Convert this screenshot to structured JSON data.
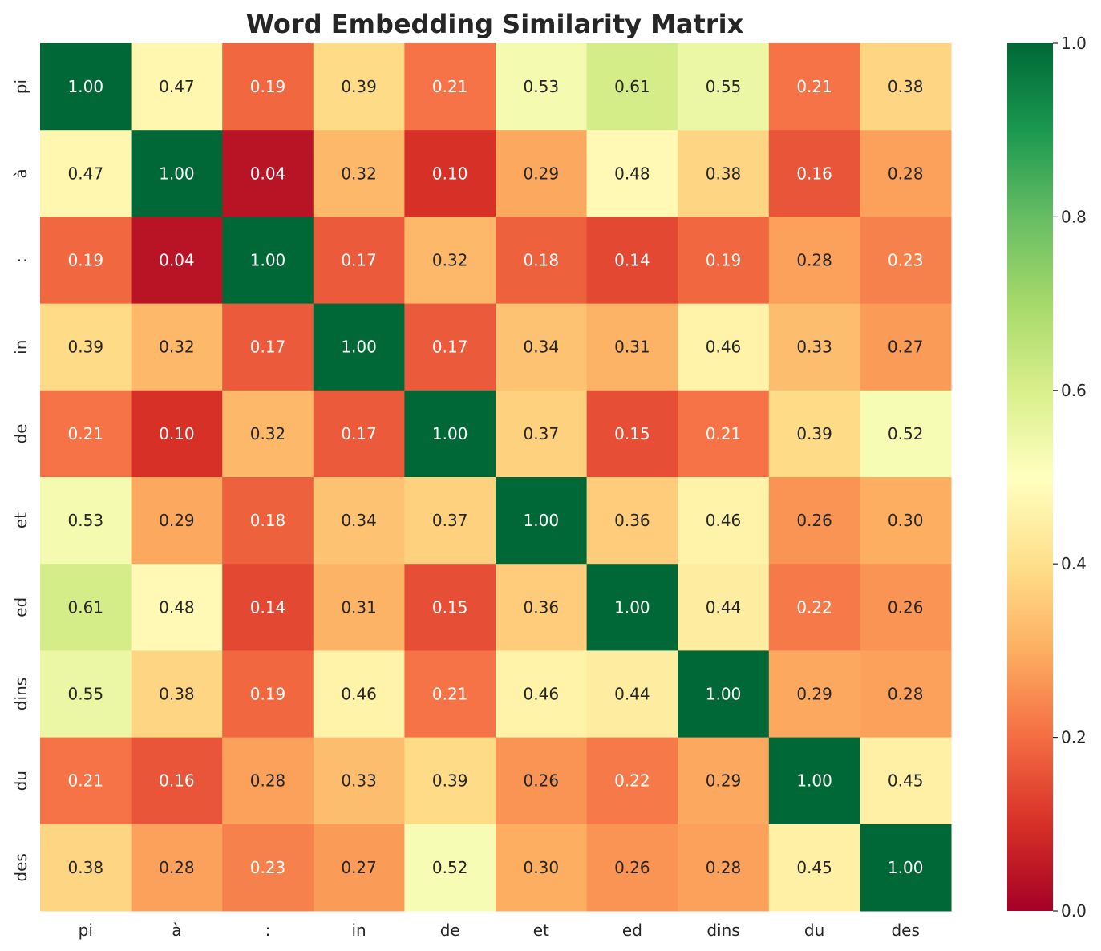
{
  "chart_data": {
    "type": "heatmap",
    "title": "Word Embedding Similarity Matrix",
    "x_categories": [
      "pi",
      "à",
      ":",
      "in",
      "de",
      "et",
      "ed",
      "dins",
      "du",
      "des"
    ],
    "y_categories": [
      "pi",
      "à",
      ":",
      "in",
      "de",
      "et",
      "ed",
      "dins",
      "du",
      "des"
    ],
    "values": [
      [
        1.0,
        0.47,
        0.19,
        0.39,
        0.21,
        0.53,
        0.61,
        0.55,
        0.21,
        0.38
      ],
      [
        0.47,
        1.0,
        0.04,
        0.32,
        0.1,
        0.29,
        0.48,
        0.38,
        0.16,
        0.28
      ],
      [
        0.19,
        0.04,
        1.0,
        0.17,
        0.32,
        0.18,
        0.14,
        0.19,
        0.28,
        0.23
      ],
      [
        0.39,
        0.32,
        0.17,
        1.0,
        0.17,
        0.34,
        0.31,
        0.46,
        0.33,
        0.27
      ],
      [
        0.21,
        0.1,
        0.32,
        0.17,
        1.0,
        0.37,
        0.15,
        0.21,
        0.39,
        0.52
      ],
      [
        0.53,
        0.29,
        0.18,
        0.34,
        0.37,
        1.0,
        0.36,
        0.46,
        0.26,
        0.3
      ],
      [
        0.61,
        0.48,
        0.14,
        0.31,
        0.15,
        0.36,
        1.0,
        0.44,
        0.22,
        0.26
      ],
      [
        0.55,
        0.38,
        0.19,
        0.46,
        0.21,
        0.46,
        0.44,
        1.0,
        0.29,
        0.28
      ],
      [
        0.21,
        0.16,
        0.28,
        0.33,
        0.39,
        0.26,
        0.22,
        0.29,
        1.0,
        0.45
      ],
      [
        0.38,
        0.28,
        0.23,
        0.27,
        0.52,
        0.3,
        0.26,
        0.28,
        0.45,
        1.0
      ]
    ],
    "value_format": "0.00",
    "colorscale": "RdYlGn",
    "color_range": [
      0.0,
      1.0
    ],
    "colorbar_ticks": [
      "0.0",
      "0.2",
      "0.4",
      "0.6",
      "0.8",
      "1.0"
    ],
    "grid": false
  }
}
